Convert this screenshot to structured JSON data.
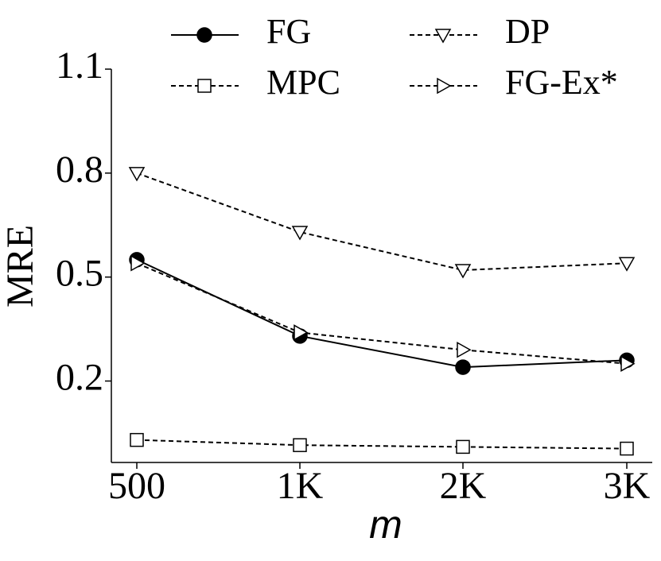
{
  "chart_data": {
    "type": "line",
    "x_label": "m",
    "y_label": "MRE",
    "categories": [
      "500",
      "1K",
      "2K",
      "3K"
    ],
    "series": [
      {
        "name": "FG",
        "color": "#000000",
        "marker": "circle",
        "linestyle": "solid",
        "values": [
          0.55,
          0.33,
          0.24,
          0.26
        ]
      },
      {
        "name": "MPC",
        "color": "#000000",
        "marker": "square",
        "linestyle": "dashed",
        "values": [
          0.03,
          0.015,
          0.01,
          0.005
        ]
      },
      {
        "name": "DP",
        "color": "#000000",
        "marker": "triangle-down",
        "linestyle": "dashed",
        "values": [
          0.8,
          0.63,
          0.52,
          0.54
        ]
      },
      {
        "name": "FG-Ex*",
        "color": "#000000",
        "marker": "triangle-right",
        "linestyle": "dashed",
        "values": [
          0.54,
          0.34,
          0.29,
          0.25
        ]
      }
    ],
    "ylim": [
      -0.035,
      1.1
    ],
    "yticks": [
      0.2,
      0.5,
      0.8,
      1.1
    ],
    "grid": false,
    "legend": "top"
  }
}
